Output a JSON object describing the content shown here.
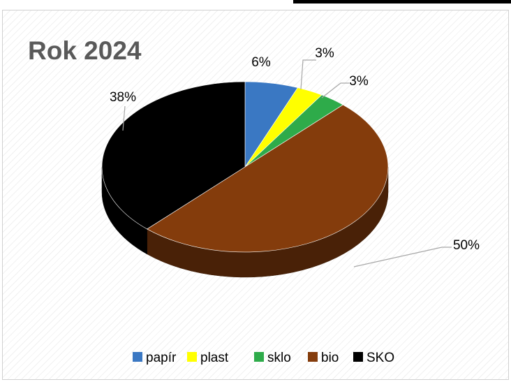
{
  "chart_data": {
    "type": "pie",
    "title": "Rok 2024",
    "categories": [
      "papír",
      "plast",
      "sklo",
      "bio",
      "SKO"
    ],
    "values": [
      6,
      3,
      3,
      50,
      38
    ],
    "labels": [
      "6%",
      "3%",
      "3%",
      "50%",
      "38%"
    ],
    "colors": [
      "#3a78c3",
      "#ffff00",
      "#2eab4a",
      "#843c0c",
      "#000000"
    ],
    "legend_position": "bottom",
    "three_d": true
  }
}
